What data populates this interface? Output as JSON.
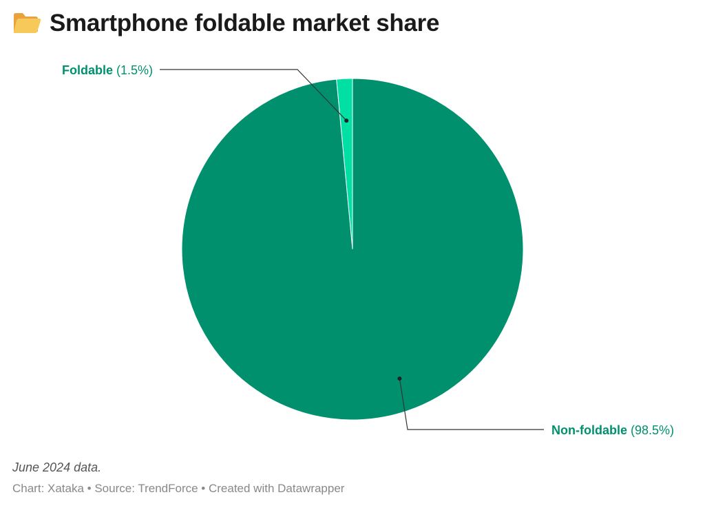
{
  "title": "Smartphone foldable market share",
  "title_icon": "open-folder-icon",
  "notes": "June 2024 data.",
  "footer": "Chart: Xataka • Source: TrendForce • Created with Datawrapper",
  "colors": {
    "non_foldable": "#00906e",
    "foldable": "#00e0a4",
    "label_text": "#00906e"
  },
  "chart_data": {
    "type": "pie",
    "title": "Smartphone foldable market share",
    "slices": [
      {
        "name": "Foldable",
        "value": 1.5,
        "label": "(1.5%)"
      },
      {
        "name": "Non-foldable",
        "value": 98.5,
        "label": "(98.5%)"
      }
    ]
  }
}
